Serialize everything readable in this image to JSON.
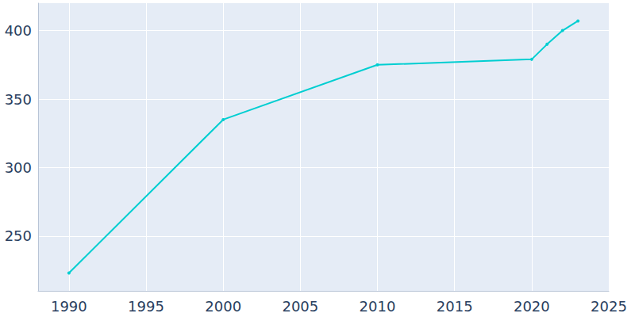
{
  "chart_data": {
    "type": "line",
    "x": [
      1990,
      2000,
      2010,
      2020,
      2021,
      2022,
      2023
    ],
    "values": [
      223,
      335,
      375,
      379,
      390,
      400,
      407
    ],
    "color": "#00ced1",
    "marker": "circle",
    "xlim": [
      1988,
      2025
    ],
    "xticks": [
      1990,
      1995,
      2000,
      2005,
      2010,
      2015,
      2020,
      2025
    ],
    "ylim": [
      210,
      420
    ],
    "yticks": [
      250,
      300,
      350,
      400
    ],
    "grid": true
  }
}
